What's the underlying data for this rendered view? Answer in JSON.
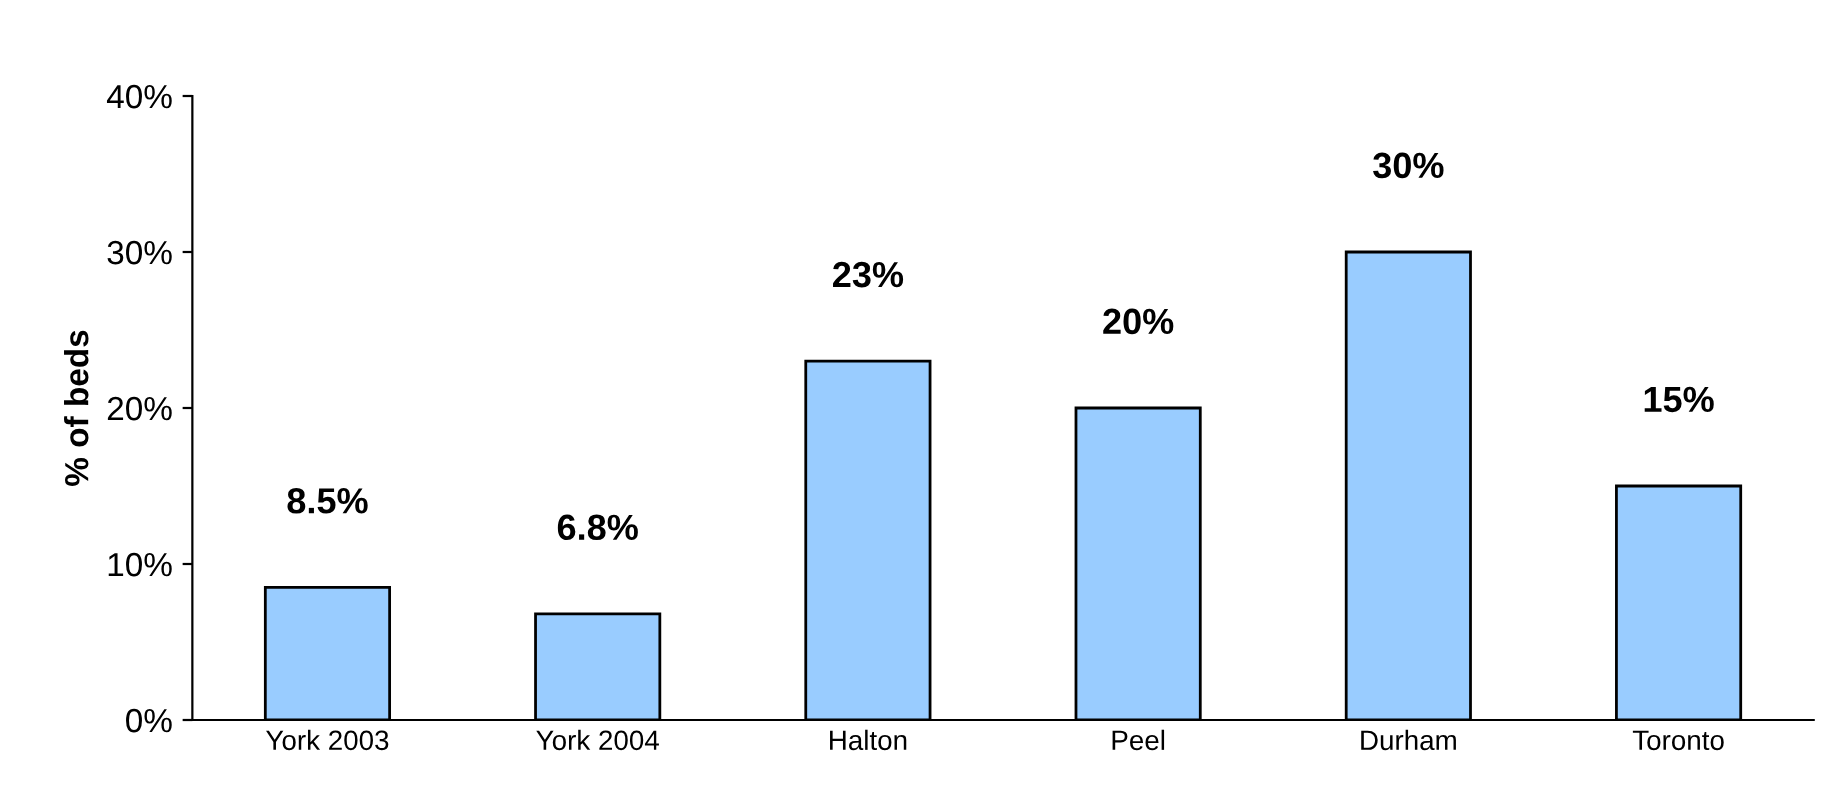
{
  "chart_data": {
    "type": "bar",
    "ylabel": "% of beds",
    "categories": [
      "York 2003",
      "York 2004",
      "Halton",
      "Peel",
      "Durham",
      "Toronto"
    ],
    "values": [
      8.5,
      6.8,
      23,
      20,
      30,
      15
    ],
    "value_labels": [
      "8.5%",
      "6.8%",
      "23%",
      "20%",
      "30%",
      "15%"
    ],
    "color": "#99ccff",
    "ylim": [
      0,
      40
    ],
    "yticks": [
      {
        "value": 0,
        "label": "0%"
      },
      {
        "value": 10,
        "label": "10%"
      },
      {
        "value": 20,
        "label": "20%"
      },
      {
        "value": 30,
        "label": "30%"
      },
      {
        "value": 40,
        "label": "40%"
      }
    ],
    "grid": false
  }
}
